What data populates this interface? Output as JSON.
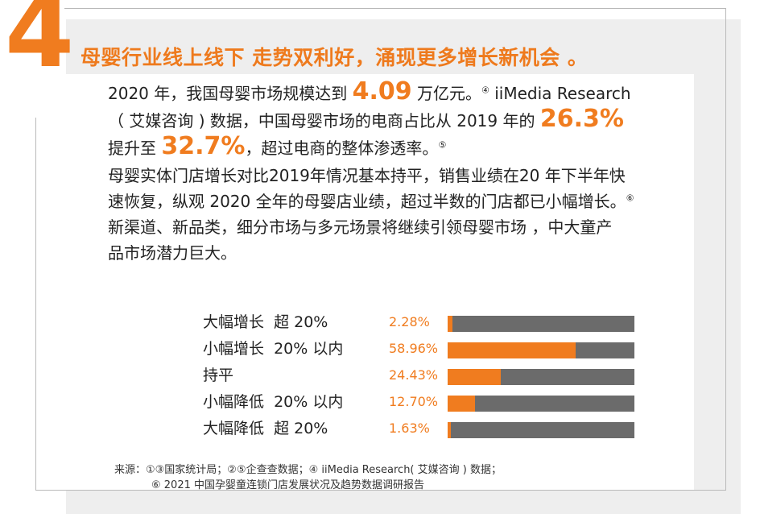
{
  "section_number": "4",
  "headline": "母婴行业线上线下 走势双利好，涌现更多增长新机会 。",
  "paragraph1": {
    "a": "2020 年，我国母婴市场规模达到 ",
    "highlight1": "4.09",
    "b": " 万亿元。",
    "note1": "④",
    "c": " iiMedia Research",
    "d": "（ 艾媒咨询 ) 数据，中国母婴市场的电商占比从 2019 年的 ",
    "highlight2": "26.3%",
    "e": "提升至 ",
    "highlight3": "32.7%",
    "f": "，超过电商的整体渗透率。",
    "note2": "⑤"
  },
  "paragraph2": {
    "line1": "母婴实体门店增长对比2019年情况基本持平，销售业绩在20 年下半年快",
    "line2": "速恢复，纵观 2020 全年的母婴店业绩，超过半数的门店都已小幅增长。",
    "note": "⑥"
  },
  "paragraph3": {
    "line1": "新渠道、新品类，细分市场与多元场景将继续引领母婴市场 ，中大童产",
    "line2": "品市场潜力巨大。"
  },
  "chart_data": {
    "type": "bar",
    "categories": [
      "大幅增长  超 20%",
      "小幅增长  20% 以内",
      "持平",
      "小幅降低  20% 以内",
      "大幅降低  超 20%"
    ],
    "values": [
      2.28,
      58.96,
      24.43,
      12.7,
      1.63
    ],
    "value_labels": [
      "2.28%",
      "58.96%",
      "24.43%",
      "12.70%",
      "1.63%"
    ],
    "max": 86.3,
    "colors": {
      "fill": "#f07c1f",
      "track": "#6b6b6b"
    }
  },
  "source": {
    "line1": "来源：①③国家统计局；②⑤企查查数据；④ iiMedia Research( 艾媒咨询 ) 数据；",
    "line2": "⑥ 2021 中国孕婴童连锁门店发展状况及趋势数据调研报告"
  }
}
